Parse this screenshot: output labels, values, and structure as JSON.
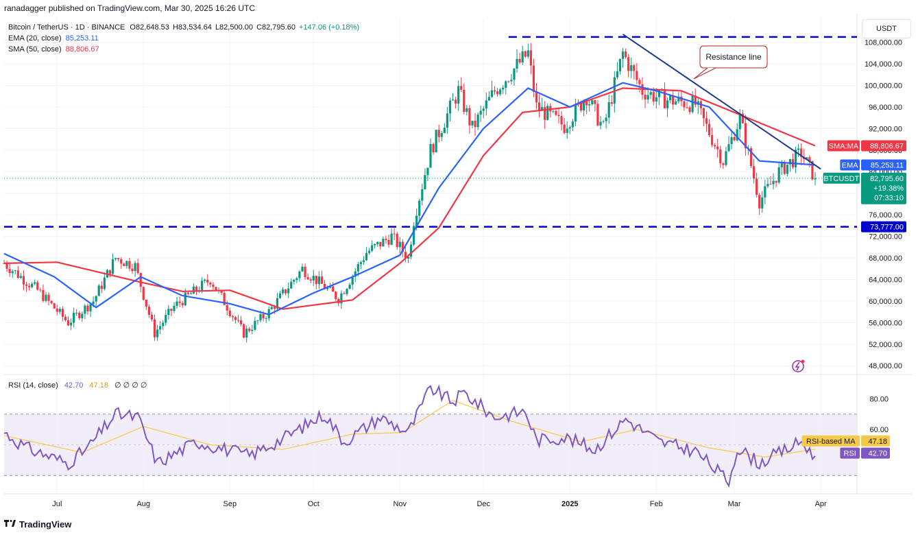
{
  "header": {
    "text": "ranadagger published on TradingView.com, Mar 30, 2025 16:26 UTC"
  },
  "legend": {
    "symbol": "Bitcoin / TetherUS · 1D · BINANCE",
    "open": "O82,648.53",
    "high": "H83,534.64",
    "low": "L82,500.00",
    "close": "C82,795.60",
    "change": "+147.06 (+0.18%)",
    "ema_label": "EMA (20, close)",
    "ema_value": "85,253.11",
    "sma_label": "SMA (50, close)",
    "sma_value": "88,806.67",
    "rsi_label": "RSI (14, close)",
    "rsi_value": "42.70",
    "rsi_ma_value": "47.18",
    "rsi_extra": "∅ ∅ ∅ ∅"
  },
  "axis": {
    "unit_label": "USDT"
  },
  "annotation": {
    "resistance": "Resistance line"
  },
  "tags": {
    "sma": {
      "label": "SMA:MA",
      "value": "88,806.67"
    },
    "ema": {
      "label": "EMA",
      "value": "85,253.11"
    },
    "price": {
      "label": "BTCUSDT",
      "value": "82,795.60",
      "pct": "+19.38%",
      "countdown": "07:33:10"
    },
    "support": {
      "value": "73,777.00"
    },
    "rsi_ma": {
      "label": "RSI-based MA",
      "value": "47.18"
    },
    "rsi": {
      "label": "RSI",
      "value": "42.70"
    }
  },
  "footer": {
    "brand": "TradingView"
  },
  "colors": {
    "up": "#089981",
    "down": "#f23645",
    "ema": "#2962ff",
    "sma": "#f23645",
    "rsi": "#7e57c2",
    "rsi_ma": "#f7c948",
    "dash": "#0000cc",
    "trend": "#1e3a8a"
  },
  "chart_data": {
    "type": "line",
    "title": "Bitcoin / TetherUS · 1D · BINANCE",
    "y_axis": {
      "ticks": [
        48000,
        52000,
        56000,
        60000,
        64000,
        68000,
        72000,
        76000,
        80000,
        84000,
        88000,
        92000,
        96000,
        100000,
        104000,
        108000
      ],
      "ylim": [
        46500,
        110000
      ]
    },
    "x_axis": {
      "ticks": [
        "Jul",
        "Aug",
        "Sep",
        "Oct",
        "Nov",
        "Dec",
        "2025",
        "Feb",
        "Mar",
        "Apr"
      ]
    },
    "x_range": [
      "2024-06-12",
      "2025-04-14"
    ],
    "x_ticks_dates": [
      "2024-07-01",
      "2024-08-01",
      "2024-09-01",
      "2024-10-01",
      "2024-11-01",
      "2024-12-01",
      "2025-01-01",
      "2025-02-01",
      "2025-03-01",
      "2025-04-01"
    ],
    "series": [
      {
        "name": "BTCUSDT",
        "x": [
          "2024-06-12",
          "2024-06-24",
          "2024-07-05",
          "2024-07-14",
          "2024-07-22",
          "2024-07-29",
          "2024-08-05",
          "2024-08-12",
          "2024-08-25",
          "2024-09-06",
          "2024-09-15",
          "2024-09-27",
          "2024-10-10",
          "2024-10-20",
          "2024-10-29",
          "2024-11-04",
          "2024-11-06",
          "2024-11-12",
          "2024-11-22",
          "2024-11-27",
          "2024-12-05",
          "2024-12-17",
          "2024-12-20",
          "2024-12-30",
          "2025-01-07",
          "2025-01-13",
          "2025-01-20",
          "2025-01-27",
          "2025-02-03",
          "2025-02-15",
          "2025-02-25",
          "2025-03-03",
          "2025-03-10",
          "2025-03-17",
          "2025-03-25",
          "2025-03-30"
        ],
        "values": [
          67000,
          62000,
          56000,
          60000,
          68000,
          66500,
          54000,
          59000,
          64000,
          54000,
          58000,
          66000,
          60500,
          69000,
          72000,
          68000,
          75000,
          88000,
          99000,
          92000,
          99000,
          106000,
          96000,
          92500,
          98000,
          92000,
          106000,
          99000,
          97500,
          96500,
          86000,
          94000,
          78500,
          84000,
          87500,
          82795.6
        ]
      },
      {
        "name": "EMA (20, close)",
        "x": [
          "2024-06-12",
          "2024-06-30",
          "2024-07-15",
          "2024-07-31",
          "2024-08-15",
          "2024-09-01",
          "2024-09-15",
          "2024-10-01",
          "2024-10-15",
          "2024-11-01",
          "2024-11-15",
          "2024-12-01",
          "2024-12-17",
          "2025-01-01",
          "2025-01-20",
          "2025-02-01",
          "2025-02-20",
          "2025-03-10",
          "2025-03-30"
        ],
        "values": [
          68800,
          64500,
          58800,
          64500,
          61000,
          59500,
          57500,
          61500,
          64500,
          68500,
          81000,
          92000,
          99500,
          96000,
          100500,
          99000,
          96000,
          86000,
          85253.11
        ]
      },
      {
        "name": "SMA (50, close)",
        "x": [
          "2024-06-12",
          "2024-07-01",
          "2024-07-31",
          "2024-08-15",
          "2024-09-01",
          "2024-09-20",
          "2024-10-15",
          "2024-11-01",
          "2024-11-15",
          "2024-12-01",
          "2024-12-15",
          "2025-01-01",
          "2025-01-20",
          "2025-02-10",
          "2025-03-01",
          "2025-03-30"
        ],
        "values": [
          67000,
          67200,
          63500,
          61800,
          62000,
          58500,
          60200,
          67000,
          73600,
          87000,
          95000,
          96000,
          99500,
          99000,
          95000,
          88806.67
        ]
      },
      {
        "name": "RSI (14, close)",
        "x": [
          "2024-06-12",
          "2024-06-20",
          "2024-07-05",
          "2024-07-12",
          "2024-07-22",
          "2024-07-30",
          "2024-08-06",
          "2024-08-20",
          "2024-09-08",
          "2024-09-20",
          "2024-10-05",
          "2024-10-12",
          "2024-10-25",
          "2024-11-04",
          "2024-11-12",
          "2024-11-20",
          "2024-11-24",
          "2024-12-05",
          "2024-12-16",
          "2024-12-20",
          "2024-12-30",
          "2025-01-10",
          "2025-01-21",
          "2025-02-02",
          "2025-02-15",
          "2025-02-27",
          "2025-03-02",
          "2025-03-10",
          "2025-03-25",
          "2025-03-30"
        ],
        "values": [
          58,
          48,
          38,
          48,
          70,
          68,
          38,
          52,
          43,
          54,
          70,
          52,
          68,
          58,
          87,
          78,
          84,
          68,
          72,
          53,
          55,
          47,
          67,
          52,
          46,
          26,
          48,
          38,
          52,
          42.7
        ]
      },
      {
        "name": "RSI-based MA",
        "x": [
          "2024-06-12",
          "2024-07-10",
          "2024-08-01",
          "2024-08-25",
          "2024-09-20",
          "2024-10-15",
          "2024-11-02",
          "2024-11-20",
          "2024-12-10",
          "2025-01-05",
          "2025-01-25",
          "2025-02-20",
          "2025-03-12",
          "2025-03-30"
        ],
        "values": [
          56,
          45,
          62,
          50,
          47,
          57,
          58,
          79,
          66,
          52,
          60,
          48,
          42,
          47.18
        ]
      }
    ],
    "rsi_axis": {
      "ticks": [
        60,
        80
      ],
      "bands": [
        30,
        70
      ],
      "ylim": [
        18,
        95
      ]
    },
    "levels": [
      {
        "label": "73,777.00",
        "value": 73777
      },
      {
        "value": 109000
      }
    ],
    "trendline": {
      "from": {
        "x": "2025-01-20",
        "y": 109500
      },
      "to": {
        "x": "2025-04-01",
        "y": 84500
      }
    },
    "annotations": [
      "Resistance line"
    ]
  }
}
